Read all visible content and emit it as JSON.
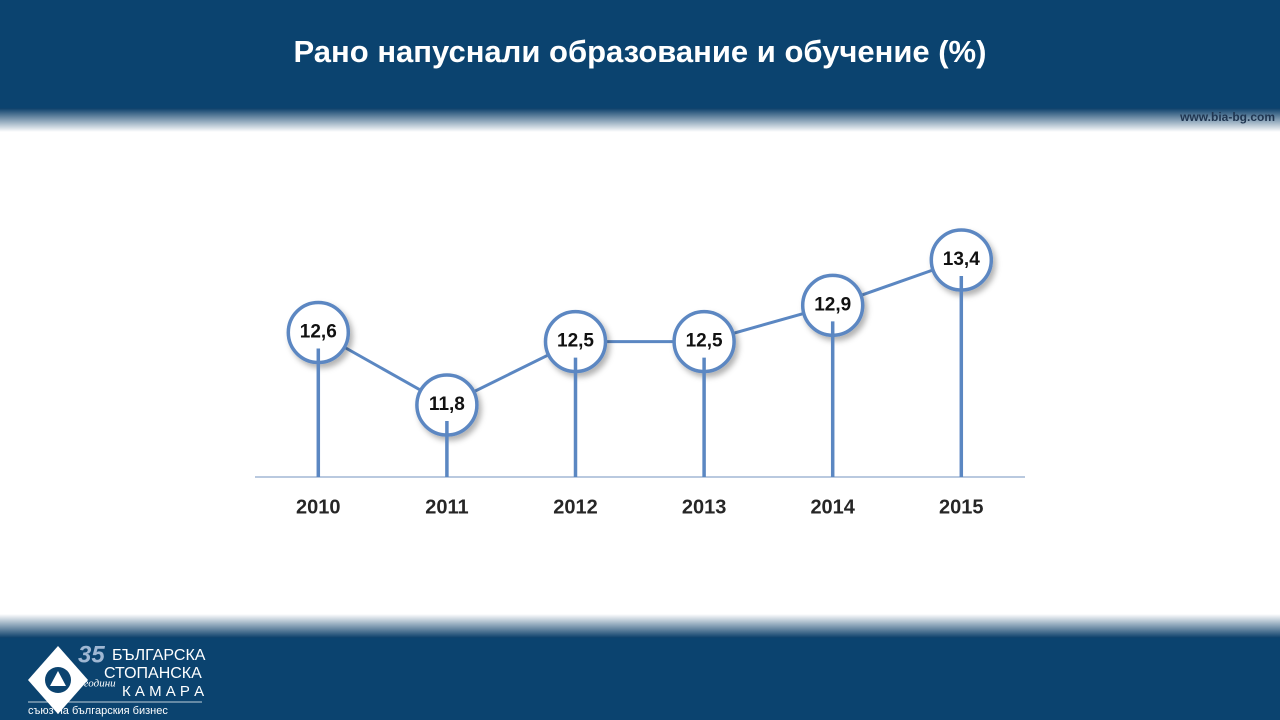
{
  "chart_data": {
    "type": "line",
    "title": "Рано напуснали образование и обучение (%)",
    "categories": [
      "2010",
      "2011",
      "2012",
      "2013",
      "2014",
      "2015"
    ],
    "values": [
      12.6,
      11.8,
      12.5,
      12.5,
      12.9,
      13.4
    ],
    "value_labels": [
      "12,6",
      "11,8",
      "12,5",
      "12,5",
      "12,9",
      "13,4"
    ],
    "color": "#5b87c2"
  },
  "header": {
    "website": "www.bia-bg.com"
  },
  "footer": {
    "logo_number": "35",
    "logo_years": "години",
    "logo_line1": "БЪЛГАРСКА",
    "logo_line2": "СТОПАНСКА",
    "logo_line3": "К А М А Р А",
    "logo_tagline": "съюз на българския бизнес"
  }
}
